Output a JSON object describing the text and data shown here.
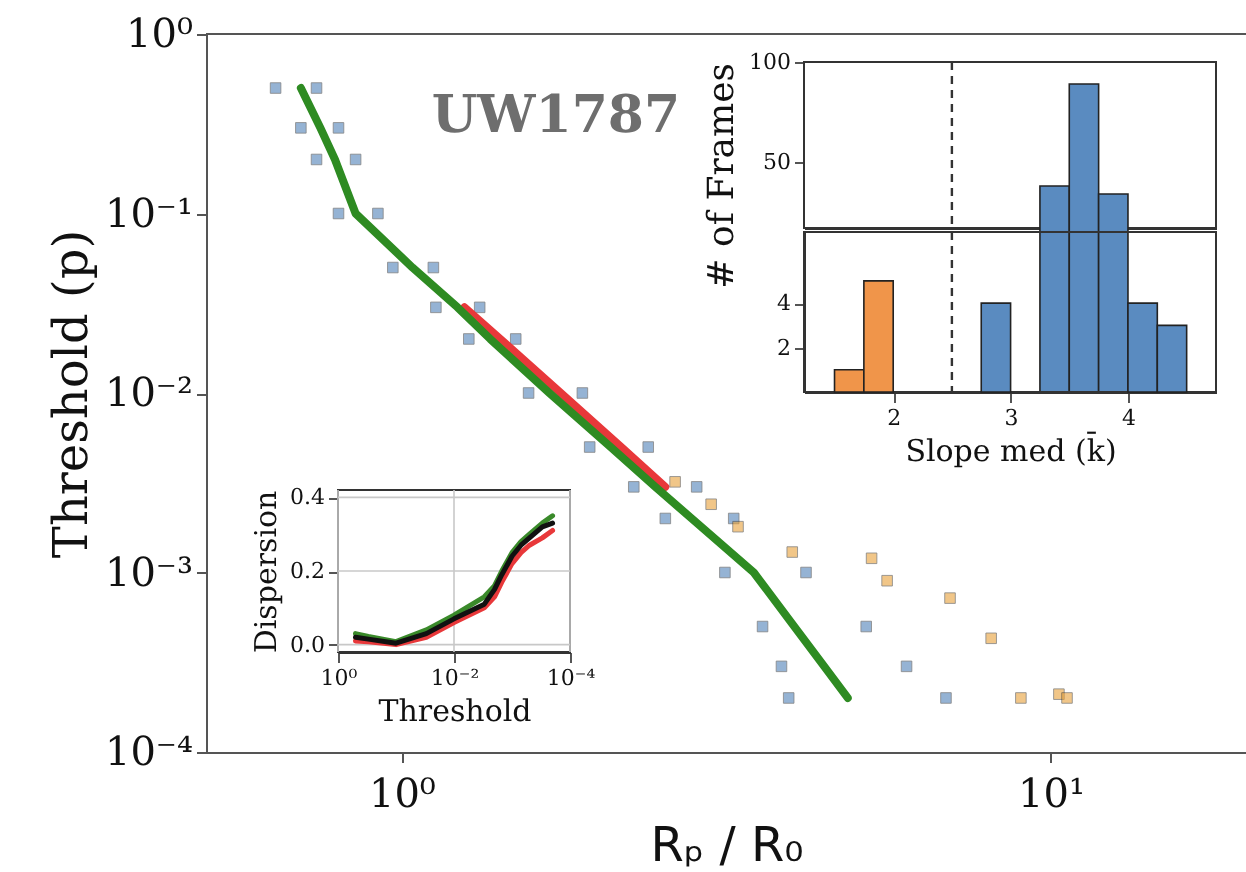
{
  "chart_data": [
    {
      "type": "scatter",
      "annotations": [
        "UW1787"
      ],
      "xlabel": "Rₚ / R₀",
      "ylabel": "Threshold (p)",
      "log": "xy",
      "xlim": [
        0.5,
        20
      ],
      "ylim": [
        0.0001,
        1
      ],
      "xticks": [
        {
          "value": 1,
          "label": "10⁰"
        },
        {
          "value": 10,
          "label": "10¹"
        }
      ],
      "yticks": [
        {
          "value": 0.0001,
          "label": "10⁻⁴"
        },
        {
          "value": 0.001,
          "label": "10⁻³"
        },
        {
          "value": 0.01,
          "label": "10⁻²"
        },
        {
          "value": 0.1,
          "label": "10⁻¹"
        },
        {
          "value": 1,
          "label": "10⁰"
        }
      ],
      "series": [
        {
          "marker": "square",
          "color": "#4f81b8",
          "x": [
            0.64,
            0.74,
            0.7,
            0.8,
            0.74,
            0.85,
            0.8,
            0.92,
            0.97,
            1.12,
            1.13,
            1.32,
            1.27,
            1.5,
            1.57,
            1.9,
            1.95,
            2.4,
            2.28,
            2.85,
            2.55,
            3.25,
            3.15,
            4.2,
            3.6,
            5.2,
            3.85,
            6.0,
            3.95,
            6.9
          ],
          "values": [
            0.5,
            0.5,
            0.3,
            0.3,
            0.2,
            0.2,
            0.1,
            0.1,
            0.05,
            0.05,
            0.03,
            0.03,
            0.02,
            0.02,
            0.01,
            0.01,
            0.005,
            0.005,
            0.003,
            0.003,
            0.002,
            0.002,
            0.001,
            0.001,
            0.0005,
            0.0005,
            0.0003,
            0.0003,
            0.0002,
            0.0002
          ]
        },
        {
          "marker": "square",
          "color": "#e8a13a",
          "x": [
            2.64,
            3.0,
            3.3,
            4.0,
            5.3,
            5.6,
            7.0,
            8.1,
            9.0,
            10.3,
            10.6
          ],
          "values": [
            0.0032,
            0.0024,
            0.0018,
            0.0013,
            0.0012,
            0.0009,
            0.00072,
            0.00043,
            0.0002,
            0.00021,
            0.0002
          ]
        },
        {
          "type": "line",
          "color": "#e8383a",
          "x": [
            1.25,
            1.42,
            1.76,
            2.18,
            2.55
          ],
          "values": [
            0.03,
            0.02,
            0.01,
            0.005,
            0.003
          ]
        },
        {
          "type": "line",
          "color": "#2e8b22",
          "x": [
            0.7,
            0.75,
            0.79,
            0.85,
            1.04,
            1.22,
            1.37,
            1.69,
            2.1,
            2.46,
            2.8,
            3.49,
            4.03,
            4.48,
            4.87
          ],
          "values": [
            0.5,
            0.3,
            0.2,
            0.1,
            0.05,
            0.03,
            0.02,
            0.01,
            0.005,
            0.003,
            0.002,
            0.001,
            0.0005,
            0.0003,
            0.0002
          ]
        }
      ]
    },
    {
      "type": "histogram",
      "ylabel": "#  of  Frames",
      "tick_labels": "y",
      "bins": [
        1.5,
        1.75,
        2.0,
        2.25,
        2.5,
        2.75,
        3.0,
        3.25,
        3.5,
        3.75,
        4.0,
        4.25,
        4.5
      ],
      "xlim": [
        1.24,
        4.75
      ],
      "ylim": [
        17,
        100
      ],
      "yticks": [
        50,
        100
      ],
      "series": [
        {
          "color": "#5a8bc0",
          "values": [
            null,
            null,
            null,
            null,
            null,
            null,
            null,
            38,
            89,
            34,
            null,
            null
          ]
        }
      ],
      "ref_lines": [
        {
          "axis": "x",
          "value": 2.5,
          "line_style": "dashed",
          "color": "#333333"
        }
      ]
    },
    {
      "type": "histogram",
      "xlabel": "Slope med (k̄)",
      "bins": [
        1.5,
        1.75,
        2.0,
        2.25,
        2.5,
        2.75,
        3.0,
        3.25,
        3.5,
        3.75,
        4.0,
        4.25,
        4.5
      ],
      "xlim": [
        1.24,
        4.75
      ],
      "xticks": [
        2,
        3,
        4
      ],
      "ylim": [
        0,
        7.2
      ],
      "yticks": [
        2,
        4
      ],
      "series": [
        {
          "color": "#f0954a",
          "values": [
            1,
            5,
            null,
            null,
            null,
            null,
            null,
            null,
            null,
            null,
            null,
            null
          ]
        },
        {
          "color": "#5a8bc0",
          "values": [
            null,
            null,
            null,
            null,
            null,
            4,
            null,
            null,
            null,
            null,
            4,
            3
          ]
        }
      ],
      "ref_lines": [
        {
          "axis": "x",
          "value": 2.5,
          "line_style": "dashed",
          "color": "#333333"
        }
      ]
    },
    {
      "type": "line",
      "xlabel": "Threshold",
      "ylabel": "Dispersion",
      "log": "x",
      "xlim": [
        1,
        0.0001
      ],
      "ylim": [
        -0.02,
        0.42
      ],
      "grid": true,
      "xticks": [
        {
          "value": 1,
          "label": "10⁰"
        },
        {
          "value": 0.01,
          "label": "10⁻²"
        },
        {
          "value": 0.0001,
          "label": "10⁻⁴"
        }
      ],
      "yticks": [
        {
          "value": 0,
          "label": "0.0"
        },
        {
          "value": 0.2,
          "label": "0.2"
        },
        {
          "value": 0.4,
          "label": "0.4"
        }
      ],
      "x": [
        0.5,
        0.3,
        0.1,
        0.03,
        0.01,
        0.003,
        0.002,
        0.0015,
        0.001,
        0.0007,
        0.0005,
        0.0003,
        0.0002
      ],
      "series": [
        {
          "color": "#e8383a",
          "values": [
            0.01,
            0.008,
            0.0,
            0.02,
            0.06,
            0.1,
            0.13,
            0.17,
            0.22,
            0.25,
            0.27,
            0.29,
            0.31
          ]
        },
        {
          "color": "#3a8a2a",
          "values": [
            0.03,
            0.022,
            0.008,
            0.04,
            0.08,
            0.13,
            0.16,
            0.2,
            0.25,
            0.28,
            0.3,
            0.33,
            0.35
          ]
        },
        {
          "color": "#111111",
          "values": [
            0.02,
            0.015,
            0.004,
            0.03,
            0.07,
            0.11,
            0.15,
            0.19,
            0.24,
            0.27,
            0.29,
            0.32,
            0.33
          ]
        }
      ]
    }
  ]
}
